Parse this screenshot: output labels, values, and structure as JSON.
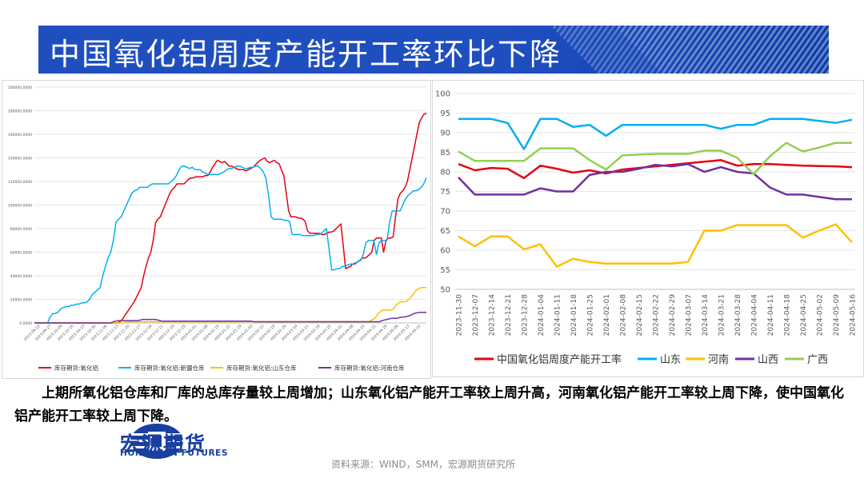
{
  "title": "中国氧化铝周度产能开工率环比下降",
  "description": "上期所氧化铝仓库和厂库的总库存量较上周增加；山东氧化铝产能开工率较上周升高，河南氧化铝产能开工率较上周下降，使中国氧化铝产能开工率较上周下降。",
  "logo": {
    "cn": "宏源期货",
    "en": "HONGYUAN FUTURES"
  },
  "source": "资料来源：WIND，SMM，宏源期货研究所",
  "colors": {
    "banner": "#1f4fbf",
    "red": "#e60012",
    "blue": "#00b0f0",
    "yellow": "#ffc000",
    "purple": "#7030a0",
    "green": "#92d050"
  },
  "chart_data": [
    {
      "type": "line",
      "title": "",
      "ylim": [
        0,
        200000
      ],
      "ytick_labels": [
        "0.0000",
        "20000.0000",
        "40000.0000",
        "60000.0000",
        "80000.0000",
        "100000.0000",
        "120000.0000",
        "140000.0000",
        "160000.0000",
        "180000.0000",
        "200000.0000"
      ],
      "x_tick_labels": [
        "2023-09-15",
        "2023-09-27",
        "2023-10-09",
        "2023-10-16",
        "2023-10-23",
        "2023-10-30",
        "2023-11-06",
        "2023-11-13",
        "2023-11-20",
        "2023-11-27",
        "2023-12-04",
        "2023-12-11",
        "2023-12-18",
        "2023-12-25",
        "2024-01-01",
        "2024-01-08",
        "2024-01-15",
        "2024-01-22",
        "2024-01-29",
        "2024-02-05",
        "2024-02-12",
        "2024-02-19",
        "2024-02-26",
        "2024-03-04",
        "2024-03-11",
        "2024-03-18",
        "2024-03-25",
        "2024-04-01",
        "2024-04-08",
        "2024-04-15",
        "2024-04-22",
        "2024-04-29",
        "2024-05-06",
        "2024-05-13",
        "2024-05-20"
      ],
      "series": [
        {
          "name": "库存期货:氧化铝",
          "color": "#e60012",
          "values": [
            0,
            0,
            0,
            0,
            0,
            0,
            0,
            0,
            0,
            0,
            0,
            0,
            0,
            0,
            0,
            0,
            0,
            0,
            0,
            0,
            0,
            0,
            0,
            0,
            0,
            0,
            0,
            0,
            0,
            0,
            0,
            0,
            0,
            0,
            0,
            0,
            1000,
            3000,
            6000,
            9000,
            12000,
            15000,
            18000,
            22000,
            26000,
            30000,
            40000,
            48000,
            55000,
            60000,
            70000,
            85000,
            88000,
            90000,
            95000,
            100000,
            105000,
            110000,
            113000,
            115000,
            118000,
            118000,
            118000,
            118000,
            120000,
            122000,
            123000,
            123000,
            124000,
            124000,
            124000,
            124000,
            125000,
            125000,
            128000,
            132000,
            135000,
            138000,
            137000,
            136000,
            137000,
            135000,
            133000,
            133000,
            132000,
            131000,
            130000,
            130000,
            130000,
            129000,
            130000,
            131000,
            132000,
            134000,
            136000,
            138000,
            139000,
            140000,
            137000,
            136000,
            137000,
            138000,
            136000,
            135000,
            130000,
            125000,
            110000,
            95000,
            90000,
            90000,
            90000,
            89000,
            89000,
            88000,
            86000,
            78000,
            76000,
            76000,
            76000,
            76000,
            76000,
            75000,
            75000,
            76000,
            77000,
            77000,
            78000,
            80000,
            82000,
            84000,
            65000,
            46000,
            47000,
            48000,
            50000,
            50000,
            52000,
            53000,
            55000,
            55000,
            56000,
            58000,
            60000,
            70000,
            72000,
            72000,
            72000,
            60000,
            70000,
            72000,
            72000,
            73000,
            90000,
            105000,
            110000,
            112000,
            115000,
            120000,
            130000,
            140000,
            150000,
            160000,
            170000,
            174000,
            177000,
            178000
          ]
        },
        {
          "name": "库存期货:氧化铝:新疆仓库",
          "color": "#00b0f0",
          "values": [
            0,
            0,
            0,
            0,
            0,
            0,
            5000,
            8000,
            8000,
            9000,
            12000,
            13000,
            14000,
            14000,
            15000,
            15000,
            16000,
            16000,
            17000,
            17000,
            18000,
            20000,
            24000,
            26000,
            28000,
            30000,
            40000,
            48000,
            55000,
            60000,
            70000,
            85000,
            88000,
            90000,
            95000,
            100000,
            105000,
            110000,
            112000,
            113000,
            115000,
            115000,
            115000,
            115000,
            117000,
            118000,
            118000,
            118000,
            118000,
            118000,
            118000,
            118000,
            120000,
            122000,
            125000,
            130000,
            133000,
            133000,
            132000,
            131000,
            132000,
            130000,
            130000,
            130000,
            128000,
            127000,
            126000,
            126000,
            126000,
            126000,
            126000,
            127000,
            128000,
            130000,
            131000,
            131000,
            132000,
            133000,
            133000,
            132000,
            131000,
            131000,
            132000,
            132000,
            133000,
            133000,
            131000,
            128000,
            123000,
            108000,
            90000,
            88000,
            88000,
            88000,
            88000,
            87000,
            87000,
            86000,
            75000,
            75000,
            75000,
            75000,
            74000,
            74000,
            74000,
            74000,
            74000,
            75000,
            75000,
            76000,
            78000,
            80000,
            63000,
            45000,
            45000,
            46000,
            46000,
            48000,
            48000,
            49000,
            50000,
            50000,
            51000,
            52000,
            53000,
            58000,
            68000,
            70000,
            70000,
            70000,
            58000,
            68000,
            70000,
            70000,
            70000,
            85000,
            95000,
            95000,
            95000,
            95000,
            100000,
            105000,
            108000,
            110000,
            112000,
            112000,
            113000,
            115000,
            118000,
            123000
          ]
        },
        {
          "name": "库存期货:氧化铝:山东仓库",
          "color": "#ffc000",
          "values": [
            0,
            0,
            0,
            0,
            0,
            0,
            0,
            0,
            0,
            0,
            0,
            0,
            0,
            0,
            0,
            0,
            0,
            0,
            0,
            0,
            0,
            0,
            0,
            0,
            0,
            0,
            0,
            0,
            0,
            0,
            0,
            0,
            0,
            0,
            0,
            0,
            1000,
            1000,
            1000,
            1000,
            1000,
            1000,
            1000,
            1000,
            1000,
            1000,
            1000,
            1000,
            1000,
            1000,
            1000,
            1000,
            1000,
            1000,
            1000,
            1000,
            1000,
            1000,
            1000,
            1000,
            1000,
            1000,
            1000,
            1000,
            1000,
            1000,
            1000,
            1000,
            1000,
            1000,
            1000,
            1000,
            1000,
            1000,
            1000,
            1000,
            1000,
            1000,
            1000,
            1000,
            1000,
            1000,
            1000,
            1000,
            1000,
            1000,
            1000,
            1000,
            1000,
            1000,
            1000,
            1000,
            1000,
            1000,
            1000,
            1000,
            1000,
            1000,
            1000,
            1000,
            1000,
            1000,
            1000,
            1000,
            1000,
            1000,
            1000,
            1000,
            1000,
            1000,
            1000,
            1000,
            1000,
            1000,
            1000,
            1000,
            1000,
            1000,
            1000,
            1000,
            1000,
            1000,
            1000,
            1000,
            1000,
            1000,
            1000,
            1000,
            1000,
            1000,
            1000,
            1000,
            1000,
            2000,
            3000,
            5000,
            8000,
            10000,
            11000,
            11000,
            11000,
            11000,
            12000,
            15000,
            17000,
            18000,
            18000,
            18000,
            20000,
            22000,
            25000,
            28000,
            29000,
            30000,
            30000,
            30000
          ]
        },
        {
          "name": "库存期货:氧化铝:河南仓库",
          "color": "#7030a0",
          "values": [
            0,
            0,
            0,
            0,
            0,
            0,
            0,
            0,
            0,
            0,
            0,
            0,
            0,
            0,
            0,
            0,
            0,
            0,
            0,
            0,
            0,
            0,
            0,
            0,
            0,
            0,
            0,
            0,
            0,
            0,
            0,
            0,
            1000,
            1500,
            2000,
            2000,
            2000,
            2000,
            2000,
            2000,
            2000,
            2000,
            2000,
            2500,
            3000,
            3000,
            3000,
            3000,
            3000,
            3000,
            2500,
            2000,
            1500,
            1500,
            1500,
            1500,
            1500,
            1500,
            1500,
            1500,
            1500,
            1500,
            1500,
            1500,
            1500,
            1500,
            1500,
            1500,
            1500,
            1500,
            1500,
            1500,
            1500,
            1500,
            1500,
            1500,
            1500,
            1500,
            1500,
            1500,
            1500,
            1500,
            1500,
            1500,
            1500,
            1500,
            1500,
            1500,
            1500,
            1000,
            1000,
            1000,
            1000,
            1000,
            1000,
            1000,
            1000,
            1000,
            1000,
            1000,
            1000,
            1000,
            1000,
            1000,
            1000,
            1000,
            1000,
            1000,
            1000,
            1000,
            1000,
            1000,
            1000,
            1000,
            1000,
            1000,
            1000,
            1000,
            1000,
            1000,
            1000,
            1000,
            1000,
            1000,
            1000,
            1000,
            1000,
            1000,
            1000,
            1000,
            1000,
            1000,
            1000,
            1000,
            1000,
            1000,
            1000,
            1000,
            1000,
            1000,
            1000,
            2000,
            2500,
            3000,
            3500,
            4000,
            4000,
            4000,
            4500,
            5000,
            5000,
            5500,
            6000,
            7000,
            8000,
            8500,
            9000,
            9000,
            9000,
            9000
          ]
        }
      ]
    },
    {
      "type": "line",
      "title": "",
      "ylim": [
        50,
        100
      ],
      "yticks": [
        50,
        55,
        60,
        65,
        70,
        75,
        80,
        85,
        90,
        95,
        100
      ],
      "categories": [
        "2023-11-30",
        "2023-12-07",
        "2023-12-14",
        "2023-12-21",
        "2023-12-28",
        "2024-01-04",
        "2024-01-11",
        "2024-01-18",
        "2024-01-25",
        "2024-02-01",
        "2024-02-08",
        "2024-02-15",
        "2024-02-22",
        "2024-02-29",
        "2024-03-07",
        "2024-03-14",
        "2024-03-21",
        "2024-03-28",
        "2024-04-04",
        "2024-04-11",
        "2024-04-18",
        "2024-04-25",
        "2024-05-02",
        "2024-05-09",
        "2024-05-16"
      ],
      "series": [
        {
          "name": "中国氧化铝周度产能开工率",
          "color": "#e60012",
          "values": [
            82.0,
            80.4,
            81.0,
            80.8,
            78.4,
            81.6,
            80.8,
            79.8,
            80.4,
            79.6,
            80.6,
            81.0,
            81.4,
            81.8,
            82.2,
            82.6,
            83.0,
            81.6,
            82.0,
            82.0,
            81.8,
            81.6,
            81.5,
            81.4,
            81.2
          ]
        },
        {
          "name": "山东",
          "color": "#00b0f0",
          "values": [
            93.5,
            93.5,
            93.5,
            92.5,
            85.8,
            93.5,
            93.5,
            91.5,
            92.0,
            89.2,
            92.0,
            92.0,
            92.0,
            92.0,
            92.0,
            92.0,
            91.0,
            92.0,
            92.0,
            93.5,
            93.5,
            93.5,
            93.0,
            92.5,
            93.3
          ]
        },
        {
          "name": "河南",
          "color": "#ffc000",
          "values": [
            63.5,
            61.0,
            63.5,
            63.5,
            60.2,
            61.5,
            55.8,
            57.8,
            57.0,
            56.6,
            56.6,
            56.6,
            56.6,
            56.6,
            57.0,
            65.0,
            65.0,
            66.4,
            66.4,
            66.4,
            66.4,
            63.2,
            65.0,
            66.6,
            62.0
          ]
        },
        {
          "name": "山西",
          "color": "#7030a0",
          "values": [
            78.6,
            74.2,
            74.2,
            74.2,
            74.2,
            75.8,
            75.0,
            75.0,
            79.2,
            80.0,
            80.0,
            80.8,
            81.8,
            81.4,
            82.0,
            80.0,
            81.2,
            80.0,
            79.6,
            76.0,
            74.2,
            74.2,
            73.6,
            73.0,
            73.0
          ]
        },
        {
          "name": "广西",
          "color": "#92d050",
          "values": [
            85.2,
            82.8,
            82.8,
            82.8,
            82.8,
            86.0,
            86.0,
            86.0,
            83.0,
            80.6,
            84.2,
            84.4,
            84.6,
            84.6,
            84.6,
            85.4,
            85.4,
            83.6,
            79.4,
            84.0,
            87.4,
            85.2,
            86.2,
            87.4,
            87.4
          ]
        }
      ]
    }
  ]
}
